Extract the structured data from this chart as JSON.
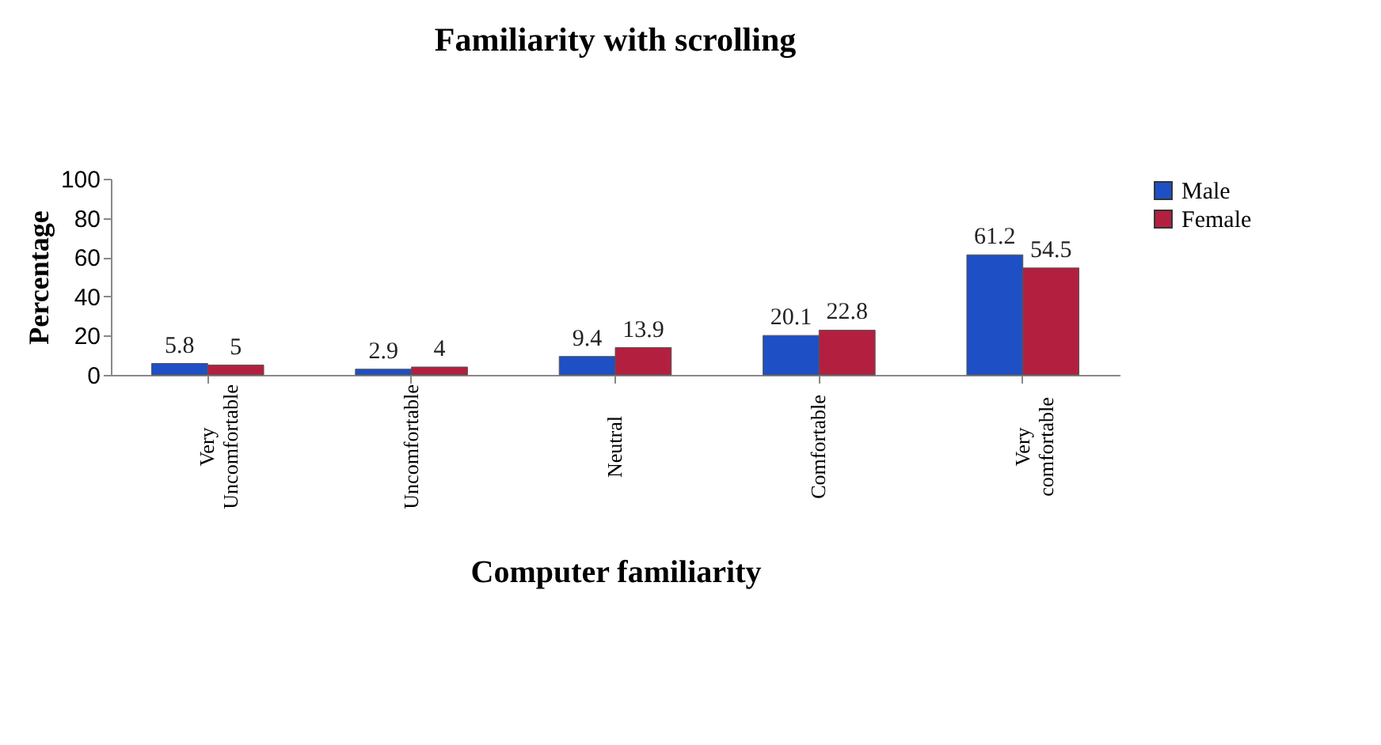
{
  "chart_data": {
    "type": "bar",
    "title": "Familiarity with scrolling",
    "xlabel": "Computer familiarity",
    "ylabel": "Percentage",
    "categories": [
      "Very Uncomfortable",
      "Uncomfortable",
      "Neutral",
      "Comfortable",
      "Very comfortable"
    ],
    "series": [
      {
        "name": "Male",
        "color": "#1f4fc4",
        "values": [
          5.8,
          2.9,
          9.4,
          20.1,
          61.2
        ]
      },
      {
        "name": "Female",
        "color": "#b3203f",
        "values": [
          5,
          4,
          13.9,
          22.8,
          54.5
        ]
      }
    ],
    "ylim": [
      0,
      100
    ],
    "yticks": [
      0,
      20,
      40,
      60,
      80,
      100
    ],
    "grid": false,
    "legend": "right",
    "data_labels": true
  }
}
